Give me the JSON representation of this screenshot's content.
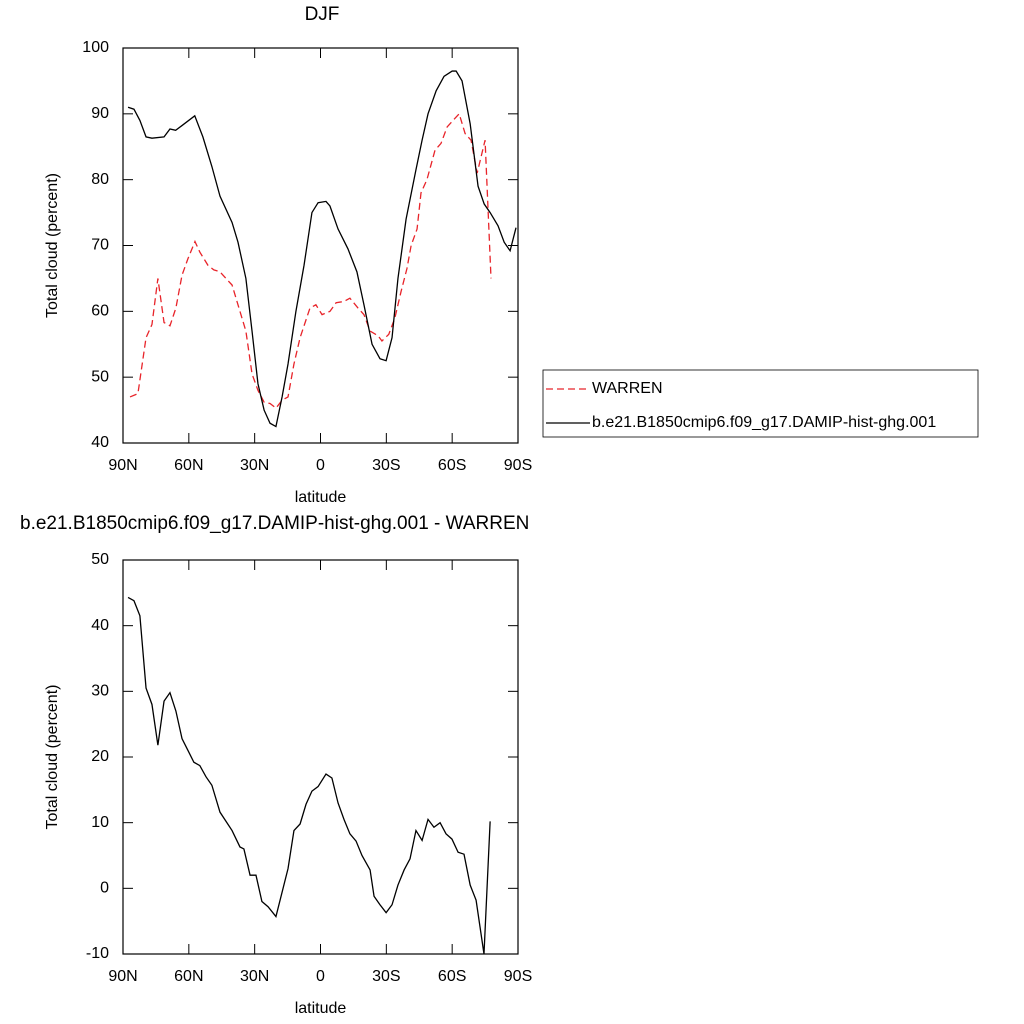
{
  "chart_data": [
    {
      "type": "line",
      "title": "DJF",
      "xlabel": "latitude",
      "ylabel": "Total cloud (percent)",
      "xlim": [
        90,
        -90
      ],
      "xticks": [
        {
          "value": 90,
          "label": "90N"
        },
        {
          "value": 60,
          "label": "60N"
        },
        {
          "value": 30,
          "label": "30N"
        },
        0,
        {
          "value": -30,
          "label": "30S"
        },
        {
          "value": -60,
          "label": "60S"
        },
        {
          "value": -90,
          "label": "90S"
        }
      ],
      "ylim": [
        40,
        100
      ],
      "yticks": [
        40,
        50,
        60,
        70,
        80,
        90,
        100
      ],
      "legend": "right",
      "series": [
        {
          "name": "WARREN",
          "color": "#e8242a",
          "dashed": true,
          "x": [
            86.8,
            83.2,
            79.5,
            76.8,
            74.1,
            71.3,
            68.6,
            65.9,
            63.1,
            60.4,
            57.2,
            55.0,
            51.3,
            48.6,
            45.8,
            43.1,
            40.3,
            36.7,
            34.0,
            31.2,
            28.5,
            25.7,
            23.0,
            20.3,
            17.5,
            14.8,
            12.1,
            9.3,
            4.8,
            2.1,
            -0.7,
            -4.3,
            -7.1,
            -10.7,
            -13.4,
            -17.1,
            -19.8,
            -22.6,
            -26.2,
            -28.0,
            -31.1,
            -33.9,
            -36.7,
            -39.4,
            -41.3,
            -44.0,
            -45.8,
            -48.5,
            -52.2,
            -54.9,
            -57.7,
            -60.4,
            -63.2,
            -65.9,
            -68.6,
            -71.4,
            -75.0,
            -77.7
          ],
          "values": [
            47,
            47.5,
            56,
            58,
            65,
            58.3,
            57.8,
            60.5,
            65.5,
            68,
            70.6,
            69,
            67,
            66.3,
            66,
            65,
            64,
            60,
            57,
            50.5,
            48,
            46.2,
            46,
            45.3,
            46.5,
            47,
            52,
            56,
            60.5,
            61,
            59.5,
            60,
            61.3,
            61.5,
            62,
            60.5,
            59.5,
            57,
            56.3,
            55.5,
            56.5,
            59,
            63,
            66.5,
            70,
            72.5,
            78,
            80,
            84.5,
            85.5,
            88,
            89,
            90,
            87,
            86,
            81,
            86,
            65
          ]
        },
        {
          "name": "b.e21.B1850cmip6.f09_g17.DAMIP-hist-ghg.001",
          "color": "#000000",
          "dashed": false,
          "x": [
            87.7,
            85,
            82.3,
            79.5,
            76.8,
            71.3,
            68.6,
            66,
            63.2,
            57.3,
            53.6,
            49.5,
            45.8,
            40.3,
            37.6,
            34,
            31.2,
            28.5,
            25.7,
            23,
            20.3,
            17.5,
            14.8,
            11.2,
            7.5,
            3.9,
            1.1,
            -2.5,
            -4.3,
            -8,
            -12.5,
            -16.6,
            -19.8,
            -23.5,
            -27.1,
            -29.9,
            -32.6,
            -35.3,
            -39,
            -43.5,
            -46.3,
            -49,
            -52.7,
            -56.3,
            -60,
            -61.8,
            -64.5,
            -68.2,
            -71.8,
            -74.6,
            -77.3,
            -80.9,
            -83.7,
            -86.4,
            -89.1
          ],
          "values": [
            91,
            90.7,
            89,
            86.5,
            86.3,
            86.5,
            87.7,
            87.5,
            88.2,
            89.7,
            86.5,
            82,
            77.5,
            73.5,
            70.5,
            65,
            57,
            49,
            45,
            43,
            42.5,
            47,
            52,
            60,
            67,
            75,
            76.5,
            76.7,
            76,
            72.5,
            69.5,
            66,
            61,
            55,
            52.8,
            52.5,
            56,
            65,
            74,
            81.5,
            86,
            90,
            93.5,
            95.7,
            96.5,
            96.5,
            95,
            88.5,
            79,
            76.3,
            75,
            73,
            70.5,
            69.2,
            72.7
          ]
        }
      ]
    },
    {
      "type": "line",
      "title": "b.e21.B1850cmip6.f09_g17.DAMIP-hist-ghg.001 - WARREN",
      "xlabel": "latitude",
      "ylabel": "Total cloud (percent)",
      "xlim": [
        90,
        -90
      ],
      "xticks": [
        {
          "value": 90,
          "label": "90N"
        },
        {
          "value": 60,
          "label": "60N"
        },
        {
          "value": 30,
          "label": "30N"
        },
        0,
        {
          "value": -30,
          "label": "30S"
        },
        {
          "value": -60,
          "label": "60S"
        },
        {
          "value": -90,
          "label": "90S"
        }
      ],
      "ylim": [
        -10,
        50
      ],
      "yticks": [
        -10,
        0,
        10,
        20,
        30,
        40,
        50
      ],
      "color": "#000000",
      "x": [
        87.7,
        85.0,
        82.3,
        79.5,
        76.8,
        74.1,
        71.3,
        68.6,
        65.9,
        63.1,
        60.4,
        57.7,
        55.0,
        52.2,
        49.5,
        45.8,
        40.3,
        36.7,
        34.9,
        32.1,
        29.4,
        26.7,
        23.9,
        20.3,
        14.8,
        12.1,
        9.3,
        6.6,
        3.9,
        1.1,
        -2.5,
        -5.2,
        -8.0,
        -10.7,
        -13.4,
        -16.2,
        -18.9,
        -22.6,
        -24.4,
        -27.1,
        -29.9,
        -32.6,
        -35.3,
        -38.1,
        -40.8,
        -43.5,
        -46.3,
        -49.0,
        -51.7,
        -54.5,
        -57.2,
        -59.9,
        -62.7,
        -65.4,
        -68.2,
        -70.9,
        -74.5,
        -77.3
      ],
      "values": [
        44.3,
        43.8,
        41.5,
        30.5,
        28,
        21.8,
        28.5,
        29.8,
        27,
        22.8,
        21,
        19.2,
        18.7,
        17,
        15.7,
        11.6,
        8.8,
        6.3,
        6,
        2,
        2,
        -2,
        -2.8,
        -4.3,
        3,
        8.8,
        9.8,
        12.8,
        14.8,
        15.5,
        17.4,
        16.8,
        13,
        10.5,
        8.3,
        7.2,
        5,
        2.8,
        -1.2,
        -2.5,
        -3.7,
        -2.5,
        0.5,
        2.8,
        4.5,
        8.8,
        7.3,
        10.5,
        9.3,
        10,
        8.3,
        7.5,
        5.5,
        5.2,
        0.5,
        -1.8,
        -10,
        10.2
      ]
    }
  ]
}
